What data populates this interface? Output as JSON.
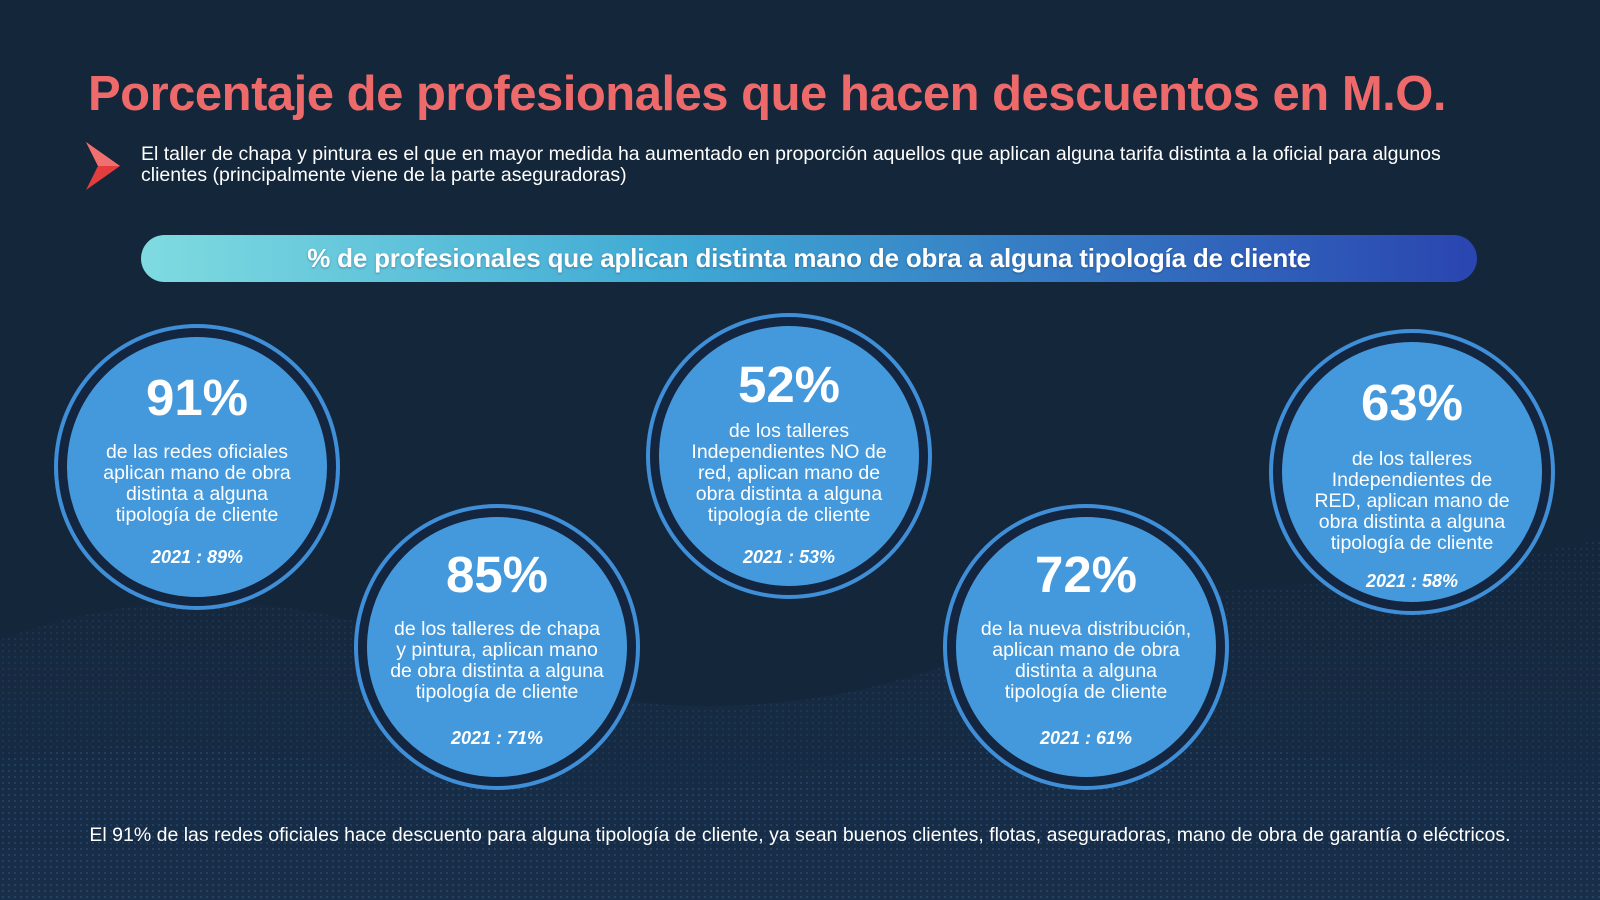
{
  "colors": {
    "background": "#14263a",
    "title": "#ee6a6a",
    "arrow": "#e43d3d",
    "banner_start": "#7fdbe0",
    "banner_end": "#2a45b0",
    "circle_fill": "#4498dc",
    "circle_ring": "#3f8ed8"
  },
  "header": {
    "title": "Porcentaje de profesionales que hacen descuentos en M.O.",
    "bullet_icon": "chevron-right-arrow",
    "subtitle": "El taller de chapa y pintura es el que en mayor medida ha aumentado en proporción aquellos que aplican alguna tarifa distinta a la oficial para algunos clientes (principalmente viene de la parte aseguradoras)"
  },
  "banner": {
    "text": "% de profesionales que aplican distinta mano de obra a alguna tipología de cliente"
  },
  "stats": [
    {
      "percent": "91%",
      "description": "de las redes oficiales aplican mano de obra distinta a alguna tipología de cliente",
      "previous": "2021 : 89%"
    },
    {
      "percent": "85%",
      "description": "de los talleres de chapa y pintura, aplican mano de obra distinta a alguna tipología de cliente",
      "previous": "2021 : 71%"
    },
    {
      "percent": "52%",
      "description": "de los talleres Independientes NO de red, aplican mano de obra distinta a alguna tipología de cliente",
      "previous": "2021 : 53%"
    },
    {
      "percent": "72%",
      "description": "de la nueva distribución, aplican mano de obra distinta a alguna tipología de cliente",
      "previous": "2021 : 61%"
    },
    {
      "percent": "63%",
      "description": "de los talleres Independientes de RED, aplican mano de obra distinta a alguna tipología de cliente",
      "previous": "2021 : 58%"
    }
  ],
  "footer": {
    "text": "El 91% de las redes oficiales hace descuento para alguna tipología de cliente, ya sean buenos clientes, flotas, aseguradoras, mano de obra de garantía o eléctricos."
  }
}
